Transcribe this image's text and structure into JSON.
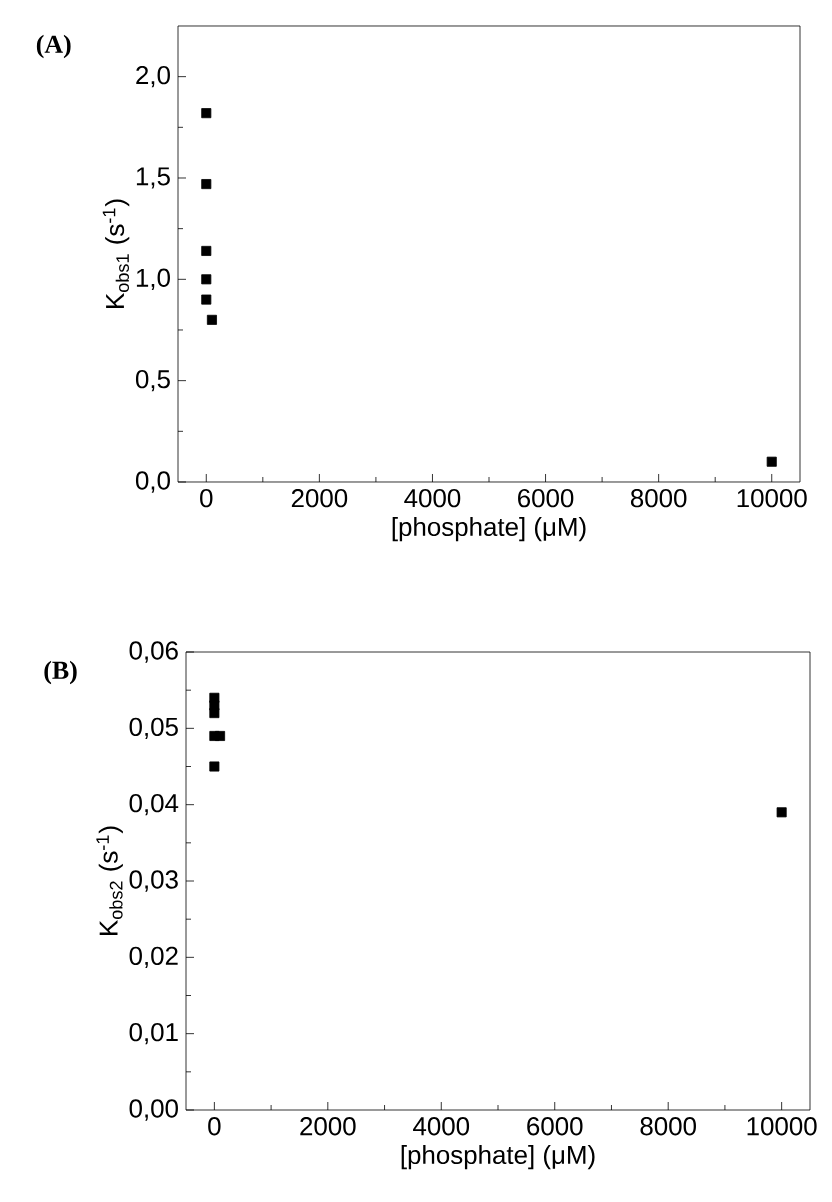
{
  "chart_data": [
    {
      "type": "scatter",
      "title": "(A)",
      "xlabel": "[phosphate] (μM)",
      "ylabel": "K$_{obs1}$ (s$^{-1}$)",
      "x": [
        0,
        0,
        0,
        0,
        0,
        100,
        10000
      ],
      "values": [
        1.82,
        1.47,
        1.14,
        1.0,
        0.9,
        0.8,
        0.1
      ],
      "color": "#000000",
      "marker": "square",
      "xlim": [
        -500,
        10500
      ],
      "ylim": [
        0,
        2.25
      ],
      "xticks": [
        0,
        2000,
        4000,
        6000,
        8000,
        10000
      ],
      "yticks": [
        {
          "value": 0,
          "label": "0,0"
        },
        {
          "value": 0.5,
          "label": "0,5"
        },
        {
          "value": 1.0,
          "label": "1,0"
        },
        {
          "value": 1.5,
          "label": "1,5"
        },
        {
          "value": 2.0,
          "label": "2,0"
        }
      ]
    },
    {
      "type": "scatter",
      "title": "(B)",
      "xlabel": "[phosphate] (μM)",
      "ylabel": "K$_{obs2}$ (s$^{-1}$)",
      "x": [
        0,
        0,
        0,
        0,
        100,
        0,
        10000
      ],
      "values": [
        0.054,
        0.053,
        0.052,
        0.049,
        0.049,
        0.045,
        0.039
      ],
      "color": "#000000",
      "marker": "square",
      "xlim": [
        -500,
        10500
      ],
      "ylim": [
        0,
        0.06
      ],
      "xticks": [
        0,
        2000,
        4000,
        6000,
        8000,
        10000
      ],
      "yticks": [
        {
          "value": 0,
          "label": "0,00"
        },
        {
          "value": 0.01,
          "label": "0,01"
        },
        {
          "value": 0.02,
          "label": "0,02"
        },
        {
          "value": 0.03,
          "label": "0,03"
        },
        {
          "value": 0.04,
          "label": "0,04"
        },
        {
          "value": 0.05,
          "label": "0,05"
        },
        {
          "value": 0.06,
          "label": "0,06"
        }
      ]
    }
  ]
}
